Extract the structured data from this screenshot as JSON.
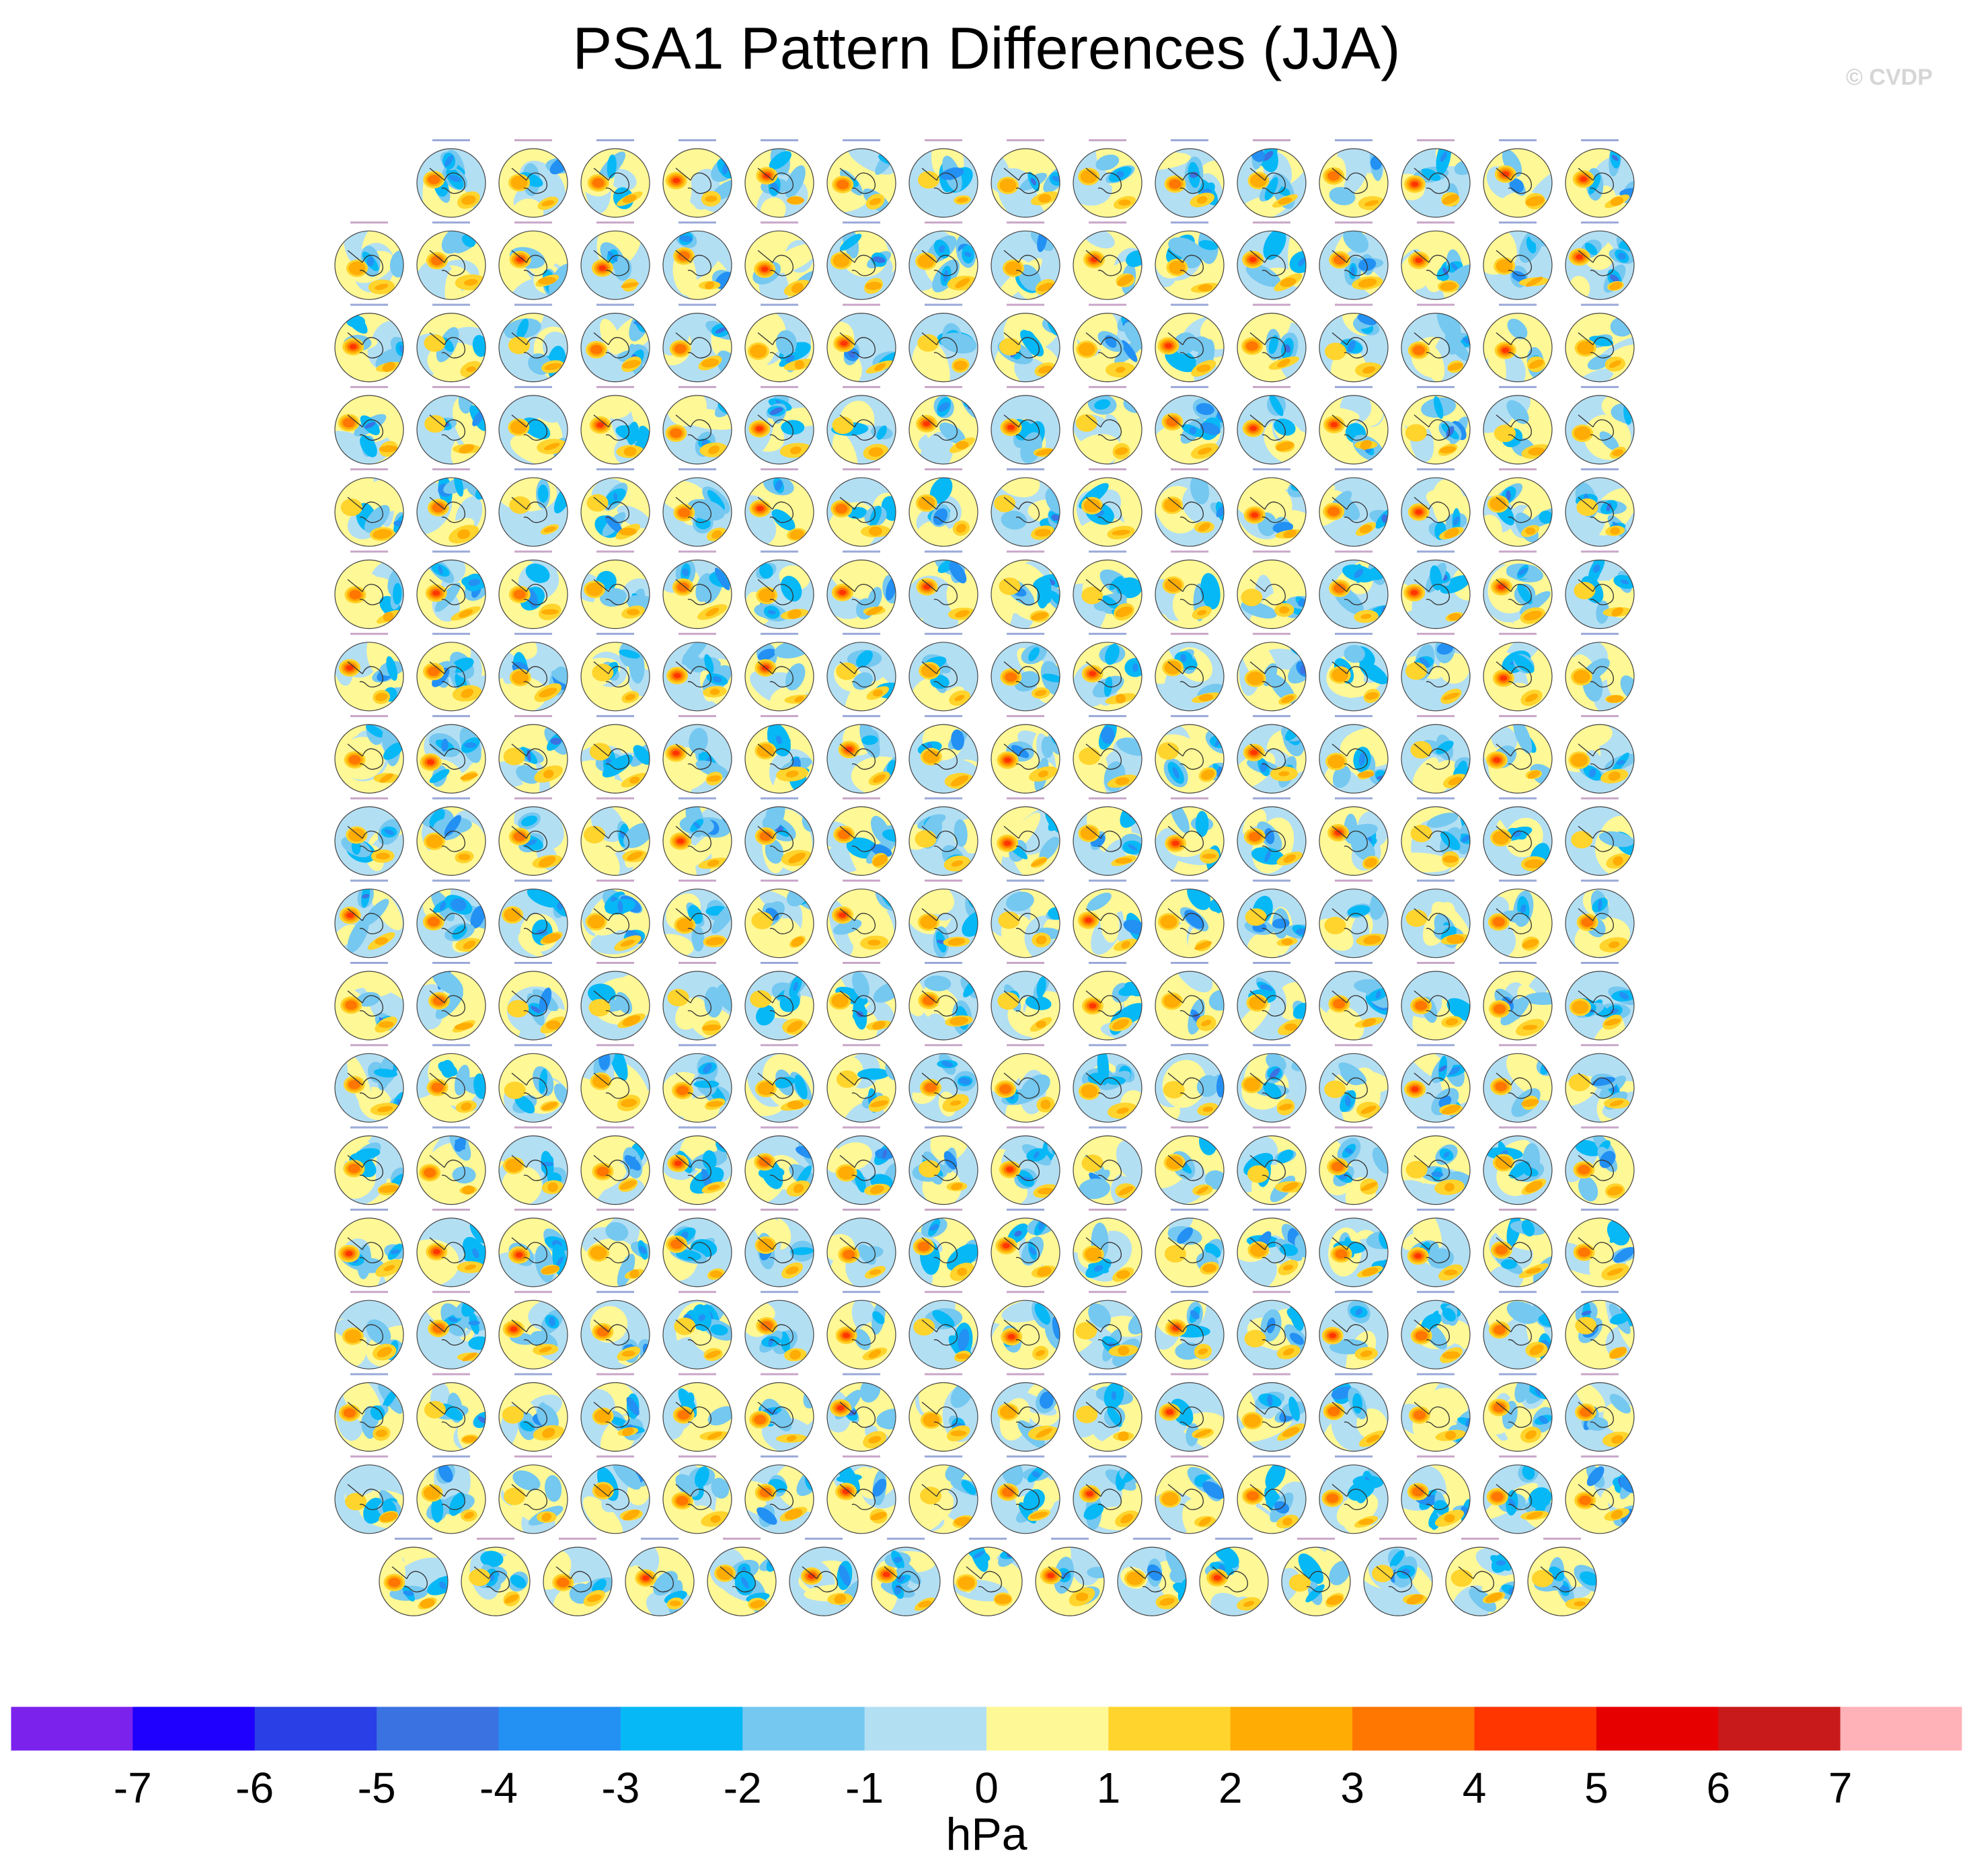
{
  "title": "PSA1 Pattern Differences (JJA)",
  "watermark": "© CVDP",
  "chart_data": {
    "type": "heatmap",
    "title": "PSA1 Pattern Differences (JJA)",
    "description_kind": "small-multiples of south polar stereographic maps",
    "grid": {
      "rows": 18,
      "panels_per_row": [
        15,
        16,
        16,
        16,
        16,
        16,
        16,
        16,
        16,
        16,
        16,
        16,
        16,
        16,
        16,
        16,
        16,
        15
      ]
    },
    "colorbar": {
      "units": "hPa",
      "tick_labels": [
        "-7",
        "-6",
        "-5",
        "-4",
        "-3",
        "-2",
        "-1",
        "0",
        "1",
        "2",
        "3",
        "4",
        "5",
        "6",
        "7"
      ],
      "colors": [
        "#7b22ed",
        "#1f00ff",
        "#2a3fe6",
        "#3a72e2",
        "#2390f4",
        "#07b8f6",
        "#75c8f0",
        "#b3dff3",
        "#fff896",
        "#ffd42c",
        "#ffac05",
        "#ff7600",
        "#ff3600",
        "#e60000",
        "#c81a1a",
        "#ffb2b8"
      ]
    }
  }
}
